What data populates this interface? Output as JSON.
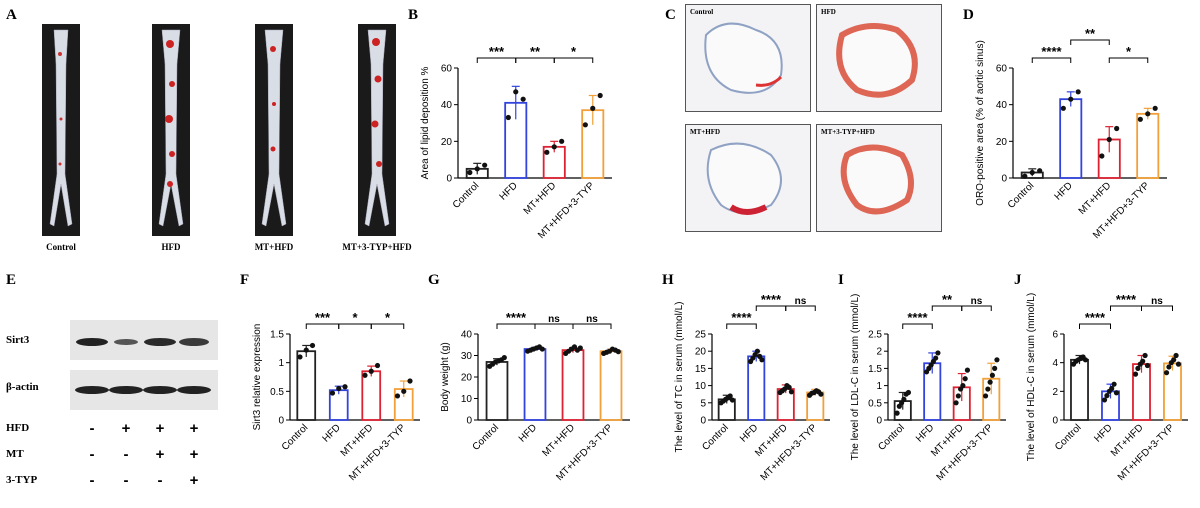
{
  "panels": {
    "A": "A",
    "B": "B",
    "C": "C",
    "D": "D",
    "E": "E",
    "F": "F",
    "G": "G",
    "H": "H",
    "I": "I",
    "J": "J"
  },
  "panel_a": {
    "labels": [
      "Control",
      "HFD",
      "MT+HFD",
      "MT+3-TYP+HFD"
    ]
  },
  "panel_c": {
    "labels": [
      "Control",
      "HFD",
      "MT+HFD",
      "MT+3-TYP+HFD"
    ]
  },
  "panel_e": {
    "bands": [
      "Sirt3",
      "β-actin"
    ],
    "rows": [
      {
        "name": "HFD",
        "signs": [
          "-",
          "+",
          "+",
          "+"
        ]
      },
      {
        "name": "MT",
        "signs": [
          "-",
          "-",
          "+",
          "+"
        ]
      },
      {
        "name": "3-TYP",
        "signs": [
          "-",
          "-",
          "-",
          "+"
        ]
      }
    ]
  },
  "colors": {
    "Control": "#222222",
    "HFD": "#3344dd",
    "MT+HFD": "#dd2233",
    "MT+HFD+3-TYP": "#f2a03a"
  },
  "chart_data": [
    {
      "id": "B",
      "type": "bar",
      "categories": [
        "Control",
        "HFD",
        "MT+HFD",
        "MT+HFD+3-TYP"
      ],
      "values": [
        5,
        41,
        17,
        37
      ],
      "errors": [
        3,
        9,
        3,
        8
      ],
      "points": [
        [
          3,
          5,
          7
        ],
        [
          33,
          47,
          43
        ],
        [
          14,
          17,
          20
        ],
        [
          29,
          38,
          45
        ]
      ],
      "ylabel": "Area of lipid deposition %",
      "ylim": [
        0,
        60
      ],
      "yticks": [
        0,
        20,
        40,
        60
      ],
      "sig": [
        {
          "from": 0,
          "to": 1,
          "label": "***",
          "level": 0
        },
        {
          "from": 1,
          "to": 2,
          "label": "**",
          "level": 0
        },
        {
          "from": 2,
          "to": 3,
          "label": "*",
          "level": 0
        }
      ]
    },
    {
      "id": "D",
      "type": "bar",
      "categories": [
        "Control",
        "HFD",
        "MT+HFD",
        "MT+HFD+3-TYP"
      ],
      "values": [
        3,
        43,
        21,
        35
      ],
      "errors": [
        2,
        4,
        7,
        3
      ],
      "points": [
        [
          1,
          3,
          4
        ],
        [
          38,
          43,
          47
        ],
        [
          12,
          21,
          27
        ],
        [
          32,
          35,
          38
        ]
      ],
      "ylabel": "ORO-positive area (% of aortic sinus)",
      "ylim": [
        0,
        60
      ],
      "yticks": [
        0,
        20,
        40,
        60
      ],
      "sig": [
        {
          "from": 0,
          "to": 1,
          "label": "****",
          "level": 0
        },
        {
          "from": 1,
          "to": 2,
          "label": "**",
          "level": 1
        },
        {
          "from": 2,
          "to": 3,
          "label": "*",
          "level": 0
        }
      ]
    },
    {
      "id": "F",
      "type": "bar",
      "categories": [
        "Control",
        "HFD",
        "MT+HFD",
        "MT+HFD+3-TYP"
      ],
      "values": [
        1.2,
        0.52,
        0.85,
        0.54
      ],
      "errors": [
        0.1,
        0.07,
        0.09,
        0.14
      ],
      "points": [
        [
          1.1,
          1.22,
          1.3
        ],
        [
          0.47,
          0.55,
          0.58
        ],
        [
          0.78,
          0.85,
          0.95
        ],
        [
          0.42,
          0.5,
          0.68
        ]
      ],
      "ylabel": "Sirt3  relative expression",
      "ylim": [
        0,
        1.5
      ],
      "yticks": [
        0,
        0.5,
        1.0,
        1.5
      ],
      "sig": [
        {
          "from": 0,
          "to": 1,
          "label": "***",
          "level": 0
        },
        {
          "from": 1,
          "to": 2,
          "label": "*",
          "level": 0
        },
        {
          "from": 2,
          "to": 3,
          "label": "*",
          "level": 0
        }
      ]
    },
    {
      "id": "G",
      "type": "bar",
      "categories": [
        "Control",
        "HFD",
        "MT+HFD",
        "MT+HFD+3-TYP"
      ],
      "values": [
        27,
        33,
        32.5,
        32
      ],
      "errors": [
        1.5,
        0.8,
        1.2,
        1
      ],
      "points": [
        [
          25,
          26,
          27,
          27.5,
          28,
          29
        ],
        [
          32,
          32.5,
          33,
          33.5,
          34,
          33
        ],
        [
          31,
          32,
          33,
          34,
          32.5,
          33.5
        ],
        [
          31,
          31.5,
          32,
          33,
          32.5,
          31.8
        ]
      ],
      "ylabel": "Body weight  (g)",
      "ylim": [
        0,
        40
      ],
      "yticks": [
        0,
        10,
        20,
        30,
        40
      ],
      "sig": [
        {
          "from": 0,
          "to": 1,
          "label": "****",
          "level": 0
        },
        {
          "from": 1,
          "to": 2,
          "label": "ns",
          "level": 0
        },
        {
          "from": 2,
          "to": 3,
          "label": "ns",
          "level": 0
        }
      ]
    },
    {
      "id": "H",
      "type": "bar",
      "categories": [
        "Control",
        "HFD",
        "MT+HFD",
        "MT+HFD+3-TYP"
      ],
      "values": [
        6,
        18.5,
        9,
        8
      ],
      "errors": [
        1.2,
        1.5,
        1.2,
        0.9
      ],
      "points": [
        [
          5,
          5.5,
          6,
          6.5,
          7,
          5.8
        ],
        [
          17,
          18,
          19,
          20,
          18.5,
          17.5
        ],
        [
          8,
          8.5,
          9,
          10,
          9.5,
          8.2
        ],
        [
          7.2,
          7.8,
          8,
          8.5,
          8.2,
          7.5
        ]
      ],
      "ylabel": "The level of TC in serum (mmol/L)",
      "ylim": [
        0,
        25
      ],
      "yticks": [
        0,
        5,
        10,
        15,
        20,
        25
      ],
      "sig": [
        {
          "from": 0,
          "to": 1,
          "label": "****",
          "level": 0
        },
        {
          "from": 1,
          "to": 2,
          "label": "****",
          "level": 1
        },
        {
          "from": 2,
          "to": 3,
          "label": "ns",
          "level": 1
        }
      ]
    },
    {
      "id": "I",
      "type": "bar",
      "categories": [
        "Control",
        "HFD",
        "MT+HFD",
        "MT+HFD+3-TYP"
      ],
      "values": [
        0.55,
        1.65,
        0.95,
        1.2
      ],
      "errors": [
        0.25,
        0.3,
        0.4,
        0.45
      ],
      "points": [
        [
          0.2,
          0.4,
          0.5,
          0.6,
          0.75,
          0.8
        ],
        [
          1.4,
          1.5,
          1.6,
          1.7,
          1.8,
          1.95
        ],
        [
          0.5,
          0.7,
          0.9,
          1.0,
          1.2,
          1.45
        ],
        [
          0.7,
          0.9,
          1.1,
          1.3,
          1.5,
          1.75
        ]
      ],
      "ylabel": "The level of LDL-C in serum (mmol/L)",
      "ylim": [
        0,
        2.5
      ],
      "yticks": [
        0,
        0.5,
        1.0,
        1.5,
        2.0,
        2.5
      ],
      "sig": [
        {
          "from": 0,
          "to": 1,
          "label": "****",
          "level": 0
        },
        {
          "from": 1,
          "to": 2,
          "label": "**",
          "level": 1
        },
        {
          "from": 2,
          "to": 3,
          "label": "ns",
          "level": 1
        }
      ]
    },
    {
      "id": "J",
      "type": "bar",
      "categories": [
        "Control",
        "HFD",
        "MT+HFD",
        "MT+HFD+3-TYP"
      ],
      "values": [
        4.2,
        2.0,
        3.9,
        3.95
      ],
      "errors": [
        0.3,
        0.5,
        0.6,
        0.5
      ],
      "points": [
        [
          3.9,
          4.1,
          4.2,
          4.3,
          4.4,
          4.2
        ],
        [
          1.4,
          1.7,
          2.0,
          2.2,
          2.5,
          1.9
        ],
        [
          3.2,
          3.6,
          3.9,
          4.1,
          4.5,
          3.8
        ],
        [
          3.3,
          3.7,
          4.0,
          4.2,
          4.5,
          3.9
        ]
      ],
      "ylabel": "The level of HDL-C in serum (mmol/L)",
      "ylim": [
        0,
        6
      ],
      "yticks": [
        0,
        2,
        4,
        6
      ],
      "sig": [
        {
          "from": 0,
          "to": 1,
          "label": "****",
          "level": 0
        },
        {
          "from": 1,
          "to": 2,
          "label": "****",
          "level": 1
        },
        {
          "from": 2,
          "to": 3,
          "label": "ns",
          "level": 1
        }
      ]
    }
  ]
}
